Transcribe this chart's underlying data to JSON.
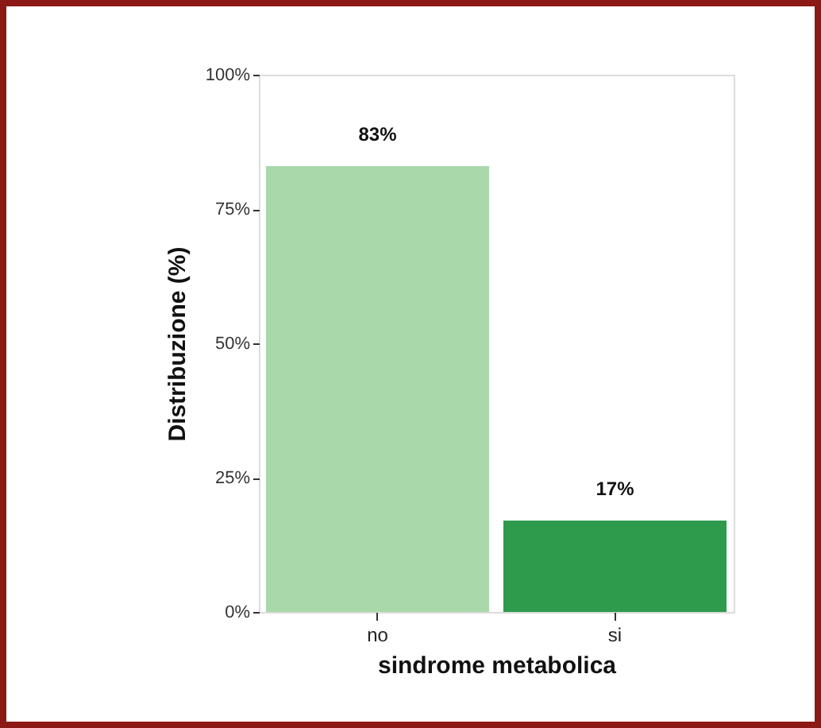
{
  "chart_data": {
    "type": "bar",
    "xlabel": "sindrome metabolica",
    "ylabel": "Distribuzione (%)",
    "categories": [
      "no",
      "si"
    ],
    "values": [
      83,
      17
    ],
    "colors": [
      "#a9d9ab",
      "#2e9b4c"
    ],
    "value_labels": [
      "83%",
      "17%"
    ],
    "ylim": [
      0,
      100
    ],
    "yticks": [
      {
        "value": 0,
        "label": "0%"
      },
      {
        "value": 25,
        "label": "25%"
      },
      {
        "value": 50,
        "label": "50%"
      },
      {
        "value": 75,
        "label": "75%"
      },
      {
        "value": 100,
        "label": "100%"
      }
    ],
    "grid": false
  }
}
